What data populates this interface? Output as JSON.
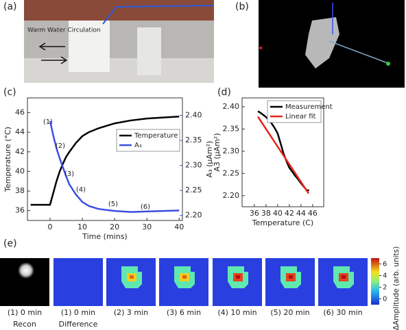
{
  "panel_labels": [
    "(a)",
    "(b)",
    "(c)",
    "(d)",
    "(e)"
  ],
  "photo_a": {
    "annotation": "Warm Water Circulation"
  },
  "chart_data": [
    {
      "type": "line",
      "x_label": "Time (mins)",
      "y_label": "Temperature (°C)",
      "y2_label": "A₃ (μAm²)",
      "xlim": [
        -7,
        41
      ],
      "xticks": [
        0,
        10,
        20,
        30,
        40
      ],
      "ylim": [
        35,
        47.5
      ],
      "yticks": [
        36,
        38,
        40,
        42,
        44,
        46
      ],
      "y2lim": [
        2.19,
        2.435
      ],
      "y2ticks": [
        {
          "value": 2.2,
          "label": "2.20"
        },
        2.25,
        {
          "value": 2.3,
          "label": "2.30"
        },
        2.35,
        {
          "value": 2.4,
          "label": "2.40"
        }
      ],
      "annotations": [
        "(1)",
        "(2)",
        "(3)",
        "(4)",
        "(5)",
        "(6)"
      ],
      "legend": "center right",
      "series": [
        {
          "name": "Temperature",
          "color": "#000000",
          "x": [
            -6,
            -5,
            -4,
            -3,
            -2,
            -1,
            0,
            1,
            2,
            3,
            4,
            5,
            6,
            8,
            10,
            12,
            15,
            18,
            20,
            25,
            30,
            35,
            40
          ],
          "values": [
            36.6,
            36.6,
            36.6,
            36.6,
            36.6,
            36.6,
            36.6,
            37.8,
            39.0,
            40.0,
            40.8,
            41.5,
            42.0,
            42.9,
            43.6,
            44.0,
            44.4,
            44.7,
            44.9,
            45.2,
            45.4,
            45.5,
            45.6
          ]
        },
        {
          "name": "A₃",
          "color": "#3a4fe0",
          "axis": "y2",
          "x": [
            0,
            1,
            2,
            3,
            4,
            5,
            6,
            8,
            10,
            12,
            15,
            20,
            25,
            30,
            35,
            40
          ],
          "values": [
            2.389,
            2.36,
            2.334,
            2.314,
            2.296,
            2.278,
            2.262,
            2.242,
            2.227,
            2.219,
            2.213,
            2.209,
            2.207,
            2.208,
            2.209,
            2.21
          ]
        }
      ]
    },
    {
      "type": "line",
      "x_label": "Temperature (C)",
      "y_label": "A3 (μAm²)",
      "xlim": [
        33.9,
        47.9
      ],
      "xticks": [
        36,
        38,
        40,
        42,
        44,
        46
      ],
      "ylim": [
        2.175,
        2.42
      ],
      "yticks": [
        {
          "value": 2.2,
          "label": "2.20"
        },
        2.25,
        {
          "value": 2.3,
          "label": "2.30"
        },
        2.35,
        {
          "value": 2.4,
          "label": "2.40"
        }
      ],
      "legend": "upper right",
      "series": [
        {
          "name": "Measurement",
          "color": "#000000",
          "x": [
            36.6,
            37,
            37.5,
            38,
            38.5,
            39,
            39.5,
            40,
            40.5,
            41,
            41.5,
            42,
            42.5,
            43,
            43.5,
            44,
            44.5,
            45,
            45.4
          ],
          "values": [
            2.39,
            2.387,
            2.382,
            2.377,
            2.37,
            2.362,
            2.352,
            2.34,
            2.318,
            2.295,
            2.278,
            2.263,
            2.254,
            2.245,
            2.237,
            2.228,
            2.22,
            2.212,
            2.212
          ]
        },
        {
          "name": "Linear fit",
          "color": "#e8261c",
          "x": [
            36.6,
            45.3
          ],
          "values": [
            2.378,
            2.205
          ]
        }
      ]
    }
  ],
  "heatmaps": {
    "captions": [
      "(1) 0 min",
      "(1) 0 min",
      "(2) 3 min",
      "(3) 6 min",
      "(4) 10 min",
      "(5) 20 min",
      "(6) 30 min"
    ],
    "subcaptions": [
      "Recon",
      "Difference"
    ],
    "colorbar": {
      "label": "ΔAmplitude (arb. units)",
      "lim": [
        -1,
        7
      ],
      "ticks": [
        0,
        2,
        4,
        6
      ]
    }
  }
}
